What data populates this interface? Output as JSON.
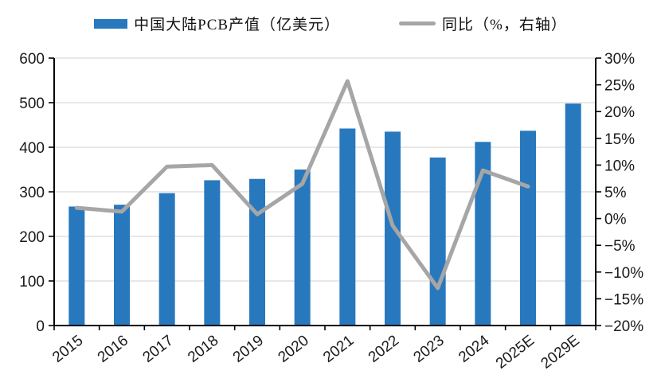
{
  "legend": {
    "bar_label": "中国大陆PCB产值（亿美元）",
    "line_label": "同比（%，右轴）"
  },
  "colors": {
    "bar": "#2878BE",
    "line": "#A6A6A6",
    "grid": "#D9D9D9",
    "axis": "#000000",
    "text": "#1a1a1a"
  },
  "chart_data": {
    "type": "bar",
    "subtype": "bar-line-combo",
    "title": "",
    "categories": [
      "2015",
      "2016",
      "2017",
      "2018",
      "2019",
      "2020",
      "2021",
      "2022",
      "2023",
      "2024",
      "2025E",
      "2029E"
    ],
    "series": [
      {
        "name": "中国大陆PCB产值（亿美元）",
        "type": "bar",
        "axis": "left",
        "values": [
          267,
          271,
          297,
          326,
          329,
          350,
          442,
          435,
          377,
          412,
          437,
          498
        ]
      },
      {
        "name": "同比（%，右轴）",
        "type": "line",
        "axis": "right",
        "values": [
          2.0,
          1.3,
          9.7,
          10.0,
          0.8,
          6.5,
          25.7,
          -1.3,
          -13.0,
          9.0,
          6.0,
          null
        ]
      }
    ],
    "left_axis": {
      "min": 0,
      "max": 600,
      "step": 100,
      "ticks": [
        "0",
        "100",
        "200",
        "300",
        "400",
        "500",
        "600"
      ]
    },
    "right_axis": {
      "min": -20,
      "max": 30,
      "step": 5,
      "ticks": [
        "−20%",
        "−15%",
        "−10%",
        "−5%",
        "0%",
        "5%",
        "10%",
        "15%",
        "20%",
        "25%",
        "30%"
      ]
    },
    "grid": true,
    "legend_position": "top"
  }
}
